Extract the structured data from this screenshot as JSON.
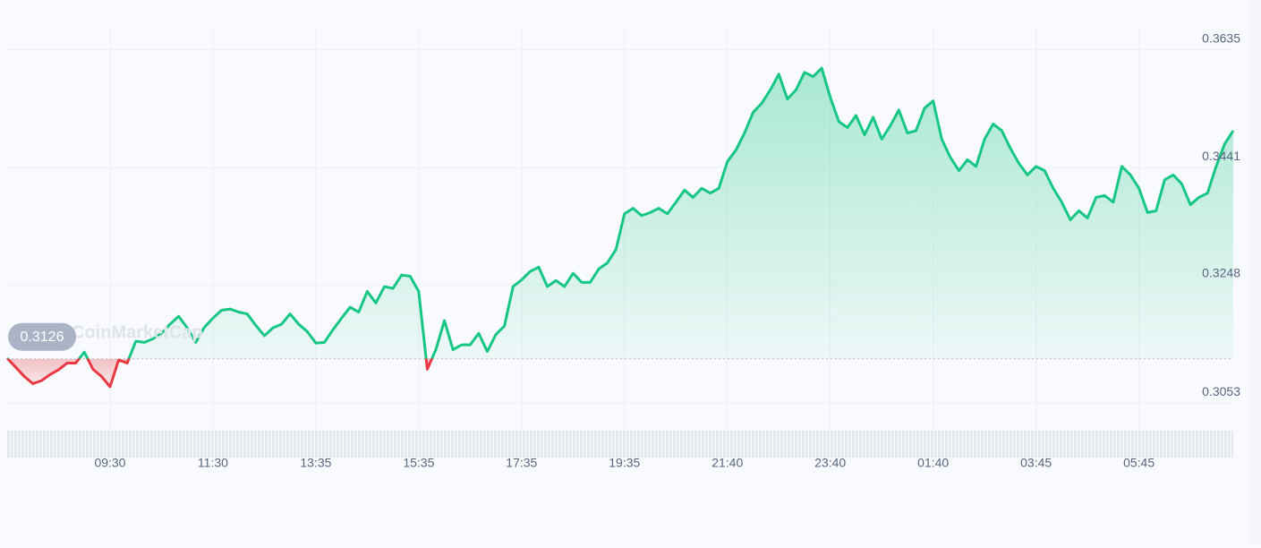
{
  "chart_data": {
    "type": "line",
    "watermark": "CoinMarketCap",
    "categories": [
      null,
      null,
      null,
      null,
      null,
      null,
      null,
      null,
      null,
      null,
      null,
      null,
      "09:30",
      null,
      null,
      null,
      null,
      null,
      null,
      null,
      null,
      null,
      null,
      null,
      "11:30",
      null,
      null,
      null,
      null,
      null,
      null,
      null,
      null,
      null,
      null,
      null,
      "13:35",
      null,
      null,
      null,
      null,
      null,
      null,
      null,
      null,
      null,
      null,
      null,
      "15:35",
      null,
      null,
      null,
      null,
      null,
      null,
      null,
      null,
      null,
      null,
      null,
      "17:35",
      null,
      null,
      null,
      null,
      null,
      null,
      null,
      null,
      null,
      null,
      null,
      "19:35",
      null,
      null,
      null,
      null,
      null,
      null,
      null,
      null,
      null,
      null,
      null,
      "21:40",
      null,
      null,
      null,
      null,
      null,
      null,
      null,
      null,
      null,
      null,
      null,
      "23:40",
      null,
      null,
      null,
      null,
      null,
      null,
      null,
      null,
      null,
      null,
      null,
      "01:40",
      null,
      null,
      null,
      null,
      null,
      null,
      null,
      null,
      null,
      null,
      null,
      "03:45",
      null,
      null,
      null,
      null,
      null,
      null,
      null,
      null,
      null,
      null,
      null,
      "05:45",
      null,
      null,
      null,
      null,
      null,
      null,
      null,
      null,
      null,
      null,
      null
    ],
    "values": [
      0.3127,
      0.3112,
      0.3097,
      0.3085,
      0.309,
      0.31,
      0.3108,
      0.3119,
      0.3119,
      0.3137,
      0.3109,
      0.3097,
      0.308,
      0.3124,
      0.3119,
      0.3155,
      0.3153,
      0.3159,
      0.3168,
      0.3183,
      0.3196,
      0.3177,
      0.3153,
      0.3178,
      0.3193,
      0.3206,
      0.3208,
      0.3203,
      0.32,
      0.3181,
      0.3164,
      0.3177,
      0.3183,
      0.32,
      0.3183,
      0.3171,
      0.3152,
      0.3153,
      0.3174,
      0.3193,
      0.3211,
      0.3203,
      0.3237,
      0.3218,
      0.3245,
      0.3242,
      0.3264,
      0.3262,
      0.3237,
      0.3109,
      0.3141,
      0.3189,
      0.3141,
      0.3149,
      0.3149,
      0.3168,
      0.3138,
      0.3166,
      0.318,
      0.3245,
      0.3256,
      0.327,
      0.3277,
      0.3245,
      0.3255,
      0.3245,
      0.3267,
      0.3252,
      0.3252,
      0.3274,
      0.3284,
      0.3306,
      0.3365,
      0.3374,
      0.3362,
      0.3367,
      0.3374,
      0.3365,
      0.3384,
      0.3404,
      0.3392,
      0.3407,
      0.3399,
      0.3407,
      0.3451,
      0.347,
      0.3498,
      0.3532,
      0.3547,
      0.3569,
      0.3595,
      0.3554,
      0.3569,
      0.3598,
      0.3591,
      0.3605,
      0.3557,
      0.3517,
      0.3507,
      0.3527,
      0.3495,
      0.3524,
      0.3488,
      0.351,
      0.3536,
      0.3498,
      0.3502,
      0.3539,
      0.3551,
      0.3488,
      0.3458,
      0.3436,
      0.3454,
      0.3443,
      0.3488,
      0.3513,
      0.3502,
      0.3473,
      0.3448,
      0.3429,
      0.3443,
      0.3436,
      0.3407,
      0.3384,
      0.3355,
      0.337,
      0.3358,
      0.3392,
      0.3395,
      0.3384,
      0.3443,
      0.3429,
      0.3407,
      0.3367,
      0.337,
      0.3421,
      0.3429,
      0.3414,
      0.338,
      0.3392,
      0.3399,
      0.3443,
      0.348,
      0.3502
    ],
    "reference_value": 0.3126,
    "up_color": "#16c784",
    "down_color": "#ea3943",
    "ylim": [
      0.3009,
      0.3673
    ],
    "yticks": [
      0.3053,
      0.3248,
      0.3441,
      0.3635
    ],
    "grid": true
  }
}
